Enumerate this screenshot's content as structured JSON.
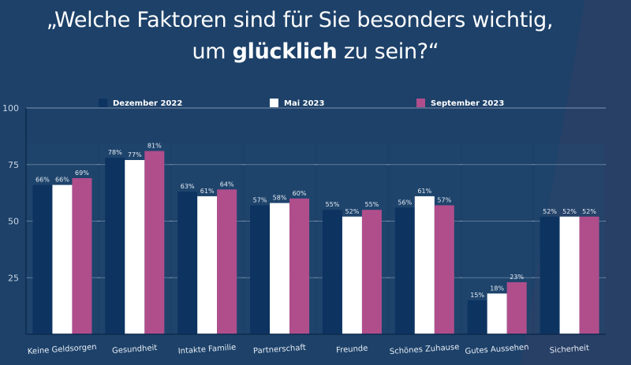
{
  "title": {
    "line1": "„Welche Faktoren sind für Sie besonders wichtig,",
    "line2_pre": "um ",
    "line2_bold": "glücklich",
    "line2_post": " zu sein?“"
  },
  "chart_data": {
    "type": "bar",
    "title": "„Welche Faktoren sind für Sie besonders wichtig, um glücklich zu sein?“",
    "xlabel": "",
    "ylabel": "",
    "ylim": [
      0,
      100
    ],
    "yticks": [
      25,
      50,
      75,
      100
    ],
    "grid": true,
    "legend_position": "top",
    "value_suffix": "%",
    "categories": [
      "Keine Geldsorgen",
      "Gesundheit",
      "Intakte Familie",
      "Partnerschaft",
      "Freunde",
      "Schönes Zuhause",
      "Gutes Aussehen",
      "Sicherheit"
    ],
    "series": [
      {
        "name": "Dezember 2022",
        "color": "#0d3461",
        "values": [
          66,
          78,
          63,
          57,
          55,
          56,
          15,
          52
        ]
      },
      {
        "name": "Mai 2023",
        "color": "#ffffff",
        "values": [
          66,
          77,
          61,
          58,
          52,
          61,
          18,
          52
        ]
      },
      {
        "name": "September 2023",
        "color": "#b04e8c",
        "values": [
          69,
          81,
          64,
          60,
          55,
          57,
          23,
          52
        ]
      }
    ]
  }
}
